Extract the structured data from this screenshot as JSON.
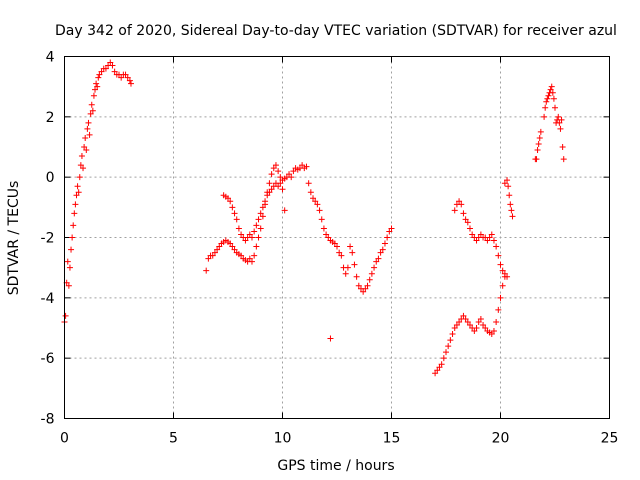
{
  "chart_data": {
    "type": "scatter",
    "title": "Day 342 of 2020, Sidereal Day-to-day VTEC variation (SDTVAR) for receiver azul",
    "xlabel": "GPS time / hours",
    "ylabel": "SDTVAR / TECUs",
    "xlim": [
      0,
      25
    ],
    "ylim": [
      -8,
      4
    ],
    "xticks": [
      0,
      5,
      10,
      15,
      20,
      25
    ],
    "yticks": [
      -8,
      -6,
      -4,
      -2,
      0,
      2,
      4
    ],
    "grid": true,
    "marker": "+",
    "color": "#ff0000",
    "series": [
      {
        "values": [
          [
            0.0,
            -4.8
          ],
          [
            0.05,
            -4.6
          ],
          [
            0.1,
            -3.5
          ],
          [
            0.15,
            -2.8
          ],
          [
            0.2,
            -3.6
          ],
          [
            0.25,
            -3.0
          ],
          [
            0.3,
            -2.4
          ],
          [
            0.35,
            -2.0
          ],
          [
            0.4,
            -1.6
          ],
          [
            0.45,
            -1.2
          ],
          [
            0.5,
            -0.9
          ],
          [
            0.55,
            -0.6
          ],
          [
            0.6,
            -0.3
          ],
          [
            0.65,
            -0.5
          ],
          [
            0.7,
            0.0
          ],
          [
            0.75,
            0.4
          ],
          [
            0.8,
            0.7
          ],
          [
            0.85,
            0.3
          ],
          [
            0.9,
            1.0
          ],
          [
            0.95,
            1.3
          ],
          [
            1.0,
            0.9
          ],
          [
            1.05,
            1.6
          ],
          [
            1.1,
            1.8
          ],
          [
            1.15,
            1.4
          ],
          [
            1.2,
            2.1
          ],
          [
            1.25,
            2.4
          ],
          [
            1.3,
            2.2
          ],
          [
            1.35,
            2.7
          ],
          [
            1.4,
            2.9
          ],
          [
            1.45,
            3.1
          ],
          [
            1.5,
            3.0
          ],
          [
            1.55,
            3.3
          ],
          [
            1.6,
            3.4
          ],
          [
            1.7,
            3.5
          ],
          [
            1.8,
            3.6
          ],
          [
            1.9,
            3.6
          ],
          [
            2.0,
            3.7
          ],
          [
            2.1,
            3.8
          ],
          [
            2.2,
            3.7
          ],
          [
            2.3,
            3.5
          ],
          [
            2.4,
            3.4
          ],
          [
            2.5,
            3.4
          ],
          [
            2.6,
            3.3
          ],
          [
            2.7,
            3.4
          ],
          [
            2.8,
            3.4
          ],
          [
            2.9,
            3.3
          ],
          [
            3.0,
            3.2
          ],
          [
            3.05,
            3.1
          ]
        ]
      },
      {
        "values": [
          [
            6.5,
            -3.1
          ],
          [
            6.6,
            -2.7
          ],
          [
            6.7,
            -2.6
          ],
          [
            6.8,
            -2.6
          ],
          [
            6.9,
            -2.5
          ],
          [
            7.0,
            -2.4
          ],
          [
            7.1,
            -2.3
          ],
          [
            7.2,
            -2.2
          ],
          [
            7.3,
            -2.15
          ],
          [
            7.4,
            -2.1
          ],
          [
            7.5,
            -2.15
          ],
          [
            7.6,
            -2.2
          ],
          [
            7.7,
            -2.3
          ],
          [
            7.8,
            -2.4
          ],
          [
            7.9,
            -2.5
          ],
          [
            8.0,
            -2.55
          ],
          [
            8.1,
            -2.6
          ],
          [
            8.2,
            -2.7
          ],
          [
            8.3,
            -2.75
          ],
          [
            8.4,
            -2.8
          ],
          [
            8.5,
            -2.7
          ],
          [
            8.6,
            -2.8
          ],
          [
            8.7,
            -2.6
          ],
          [
            8.8,
            -2.3
          ],
          [
            8.9,
            -2.0
          ],
          [
            9.0,
            -1.7
          ],
          [
            9.1,
            -1.3
          ],
          [
            9.2,
            -0.9
          ],
          [
            9.3,
            -0.5
          ],
          [
            9.4,
            -0.2
          ],
          [
            9.5,
            0.1
          ],
          [
            9.6,
            0.3
          ],
          [
            9.7,
            0.4
          ],
          [
            9.8,
            0.2
          ],
          [
            9.9,
            0.0
          ],
          [
            10.0,
            -0.4
          ],
          [
            10.1,
            -1.1
          ]
        ]
      },
      {
        "values": [
          [
            7.3,
            -0.6
          ],
          [
            7.4,
            -0.65
          ],
          [
            7.5,
            -0.7
          ],
          [
            7.6,
            -0.8
          ],
          [
            7.7,
            -1.0
          ],
          [
            7.8,
            -1.2
          ],
          [
            7.9,
            -1.4
          ],
          [
            8.0,
            -1.7
          ],
          [
            8.1,
            -1.9
          ],
          [
            8.2,
            -2.0
          ],
          [
            8.3,
            -2.1
          ],
          [
            8.4,
            -2.0
          ],
          [
            8.5,
            -1.9
          ],
          [
            8.6,
            -2.0
          ],
          [
            8.7,
            -1.8
          ],
          [
            8.8,
            -1.6
          ],
          [
            8.9,
            -1.4
          ],
          [
            9.0,
            -1.2
          ],
          [
            9.1,
            -1.0
          ],
          [
            9.2,
            -0.8
          ],
          [
            9.3,
            -0.6
          ],
          [
            9.4,
            -0.5
          ],
          [
            9.5,
            -0.4
          ],
          [
            9.6,
            -0.3
          ],
          [
            9.7,
            -0.2
          ],
          [
            9.8,
            -0.3
          ],
          [
            9.9,
            -0.2
          ],
          [
            10.0,
            -0.1
          ],
          [
            10.1,
            -0.05
          ],
          [
            10.2,
            0.0
          ],
          [
            10.3,
            0.1
          ],
          [
            10.4,
            0.0
          ],
          [
            10.5,
            0.2
          ],
          [
            10.6,
            0.3
          ],
          [
            10.7,
            0.25
          ],
          [
            10.8,
            0.3
          ],
          [
            10.9,
            0.4
          ],
          [
            11.0,
            0.3
          ],
          [
            11.1,
            0.35
          ],
          [
            11.2,
            -0.2
          ],
          [
            11.3,
            -0.5
          ],
          [
            11.4,
            -0.7
          ],
          [
            11.5,
            -0.8
          ],
          [
            11.6,
            -0.9
          ],
          [
            11.7,
            -1.1
          ],
          [
            11.8,
            -1.4
          ],
          [
            11.9,
            -1.7
          ],
          [
            12.0,
            -1.9
          ],
          [
            12.1,
            -2.0
          ],
          [
            12.2,
            -2.1
          ],
          [
            12.3,
            -2.15
          ],
          [
            12.4,
            -2.2
          ],
          [
            12.5,
            -2.3
          ],
          [
            12.6,
            -2.5
          ],
          [
            12.7,
            -2.6
          ],
          [
            12.8,
            -3.0
          ],
          [
            12.9,
            -3.2
          ],
          [
            13.0,
            -3.0
          ],
          [
            13.1,
            -2.3
          ],
          [
            13.2,
            -2.5
          ],
          [
            13.3,
            -2.9
          ],
          [
            13.4,
            -3.3
          ],
          [
            13.5,
            -3.6
          ],
          [
            13.6,
            -3.7
          ],
          [
            13.7,
            -3.8
          ],
          [
            13.8,
            -3.7
          ],
          [
            13.9,
            -3.6
          ],
          [
            14.0,
            -3.4
          ],
          [
            14.1,
            -3.2
          ],
          [
            14.2,
            -3.0
          ],
          [
            14.3,
            -2.8
          ],
          [
            14.4,
            -2.7
          ],
          [
            14.5,
            -2.5
          ],
          [
            14.6,
            -2.4
          ],
          [
            14.7,
            -2.2
          ],
          [
            14.8,
            -2.0
          ],
          [
            14.9,
            -1.8
          ],
          [
            15.0,
            -1.7
          ]
        ]
      },
      {
        "values": [
          [
            12.2,
            -5.35
          ]
        ]
      },
      {
        "values": [
          [
            17.0,
            -6.5
          ],
          [
            17.1,
            -6.4
          ],
          [
            17.2,
            -6.3
          ],
          [
            17.3,
            -6.2
          ],
          [
            17.4,
            -6.0
          ],
          [
            17.5,
            -5.8
          ],
          [
            17.6,
            -5.6
          ],
          [
            17.7,
            -5.4
          ],
          [
            17.8,
            -5.2
          ],
          [
            17.9,
            -5.0
          ],
          [
            18.0,
            -4.9
          ],
          [
            18.1,
            -4.8
          ],
          [
            18.2,
            -4.7
          ],
          [
            18.3,
            -4.6
          ],
          [
            18.4,
            -4.7
          ],
          [
            18.5,
            -4.8
          ],
          [
            18.6,
            -4.9
          ],
          [
            18.7,
            -5.0
          ],
          [
            18.8,
            -5.1
          ],
          [
            18.9,
            -5.0
          ],
          [
            19.0,
            -4.8
          ],
          [
            19.1,
            -4.7
          ],
          [
            19.2,
            -4.9
          ],
          [
            19.3,
            -5.0
          ],
          [
            19.4,
            -5.1
          ],
          [
            19.5,
            -5.15
          ],
          [
            19.6,
            -5.2
          ],
          [
            19.7,
            -5.1
          ],
          [
            19.8,
            -4.8
          ],
          [
            19.9,
            -4.4
          ],
          [
            20.0,
            -4.0
          ],
          [
            20.1,
            -3.6
          ],
          [
            20.2,
            -3.3
          ]
        ]
      },
      {
        "values": [
          [
            17.9,
            -1.1
          ],
          [
            18.0,
            -0.9
          ],
          [
            18.1,
            -0.8
          ],
          [
            18.2,
            -0.9
          ],
          [
            18.3,
            -1.2
          ],
          [
            18.4,
            -1.4
          ],
          [
            18.5,
            -1.5
          ],
          [
            18.6,
            -1.7
          ],
          [
            18.7,
            -1.9
          ],
          [
            18.8,
            -2.0
          ],
          [
            18.9,
            -2.1
          ],
          [
            19.0,
            -2.0
          ],
          [
            19.1,
            -1.9
          ],
          [
            19.2,
            -2.0
          ],
          [
            19.3,
            -2.0
          ],
          [
            19.4,
            -2.1
          ],
          [
            19.5,
            -2.0
          ],
          [
            19.6,
            -1.9
          ],
          [
            19.7,
            -2.1
          ],
          [
            19.8,
            -2.3
          ],
          [
            19.9,
            -2.6
          ],
          [
            20.0,
            -2.9
          ],
          [
            20.1,
            -3.1
          ],
          [
            20.2,
            -3.2
          ],
          [
            20.3,
            -3.3
          ]
        ]
      },
      {
        "values": [
          [
            20.2,
            -0.2
          ],
          [
            20.3,
            -0.1
          ],
          [
            20.35,
            -0.3
          ],
          [
            20.4,
            -0.6
          ],
          [
            20.45,
            -0.9
          ],
          [
            20.5,
            -1.1
          ],
          [
            20.55,
            -1.3
          ]
        ]
      },
      {
        "values": [
          [
            21.6,
            0.6
          ],
          [
            21.65,
            0.6
          ],
          [
            21.7,
            0.9
          ],
          [
            21.75,
            1.1
          ],
          [
            21.8,
            1.3
          ],
          [
            21.85,
            1.5
          ]
        ]
      },
      {
        "values": [
          [
            22.0,
            2.0
          ],
          [
            22.05,
            2.3
          ],
          [
            22.1,
            2.5
          ],
          [
            22.15,
            2.6
          ],
          [
            22.2,
            2.7
          ],
          [
            22.25,
            2.8
          ],
          [
            22.3,
            2.9
          ],
          [
            22.35,
            3.0
          ],
          [
            22.4,
            2.8
          ],
          [
            22.45,
            2.6
          ],
          [
            22.5,
            2.3
          ],
          [
            22.55,
            1.8
          ],
          [
            22.6,
            1.9
          ],
          [
            22.65,
            2.0
          ],
          [
            22.7,
            1.8
          ],
          [
            22.75,
            1.6
          ],
          [
            22.8,
            1.9
          ],
          [
            22.85,
            1.0
          ],
          [
            22.9,
            0.6
          ]
        ]
      }
    ]
  }
}
